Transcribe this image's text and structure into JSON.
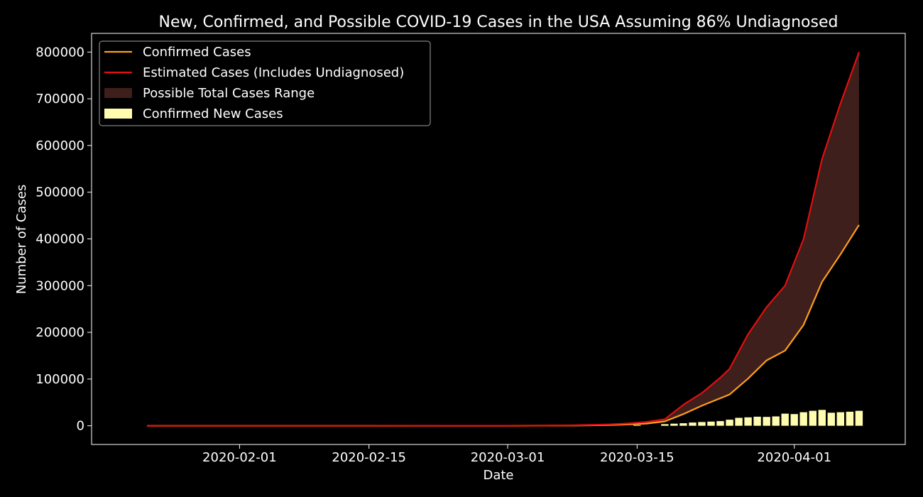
{
  "chart_data": {
    "type": "line",
    "title": "New, Confirmed, and Possible COVID-19 Cases in the USA Assuming 86% Undiagnosed",
    "xlabel": "Date",
    "ylabel": "Number of Cases",
    "ylim": [
      -40000,
      840000
    ],
    "xlim": [
      "2020-01-16",
      "2020-04-13"
    ],
    "x_ticks": [
      "2020-02-01",
      "2020-02-15",
      "2020-03-01",
      "2020-03-15",
      "2020-04-01"
    ],
    "y_ticks": [
      0,
      100000,
      200000,
      300000,
      400000,
      500000,
      600000,
      700000,
      800000
    ],
    "grid": false,
    "legend_position": "top-left",
    "colors": {
      "confirmed": "#ff9f1a",
      "estimated": "#e00f0f",
      "range": "#3e1f1c",
      "new_cases": "#fffcaf",
      "frame": "#ffffff"
    },
    "legend": [
      {
        "label": "Confirmed Cases",
        "kind": "line",
        "color": "#ff9f1a"
      },
      {
        "label": "Estimated Cases (Includes Undiagnosed)",
        "kind": "line",
        "color": "#e00f0f"
      },
      {
        "label": "Possible Total Cases Range",
        "kind": "patch",
        "color": "#3e1f1c"
      },
      {
        "label": "Confirmed New Cases",
        "kind": "patch",
        "color": "#fffcaf"
      }
    ],
    "series": [
      {
        "name": "Confirmed Cases",
        "x": [
          "2020-01-22",
          "2020-02-15",
          "2020-03-01",
          "2020-03-05",
          "2020-03-08",
          "2020-03-10",
          "2020-03-12",
          "2020-03-14",
          "2020-03-16",
          "2020-03-18",
          "2020-03-20",
          "2020-03-22",
          "2020-03-24",
          "2020-03-25",
          "2020-03-27",
          "2020-03-29",
          "2020-03-31",
          "2020-04-02",
          "2020-04-04",
          "2020-04-06",
          "2020-04-08"
        ],
        "values": [
          0,
          0,
          100,
          300,
          500,
          1000,
          1700,
          2900,
          4700,
          9400,
          25000,
          43000,
          59000,
          67000,
          101000,
          140000,
          161000,
          216000,
          308000,
          367000,
          430000
        ]
      },
      {
        "name": "Estimated Cases (Includes Undiagnosed)",
        "x": [
          "2020-01-22",
          "2020-02-15",
          "2020-03-01",
          "2020-03-05",
          "2020-03-08",
          "2020-03-10",
          "2020-03-12",
          "2020-03-14",
          "2020-03-16",
          "2020-03-18",
          "2020-03-20",
          "2020-03-22",
          "2020-03-24",
          "2020-03-25",
          "2020-03-27",
          "2020-03-29",
          "2020-03-31",
          "2020-04-02",
          "2020-04-04",
          "2020-04-06",
          "2020-04-08"
        ],
        "values": [
          0,
          0,
          200,
          500,
          1000,
          2000,
          3000,
          5000,
          8000,
          14000,
          45000,
          70000,
          103000,
          122000,
          196000,
          254000,
          300000,
          400000,
          571000,
          690000,
          800000
        ]
      },
      {
        "name": "Confirmed New Cases",
        "type": "bar",
        "x": [
          "2020-03-15",
          "2020-03-16",
          "2020-03-17",
          "2020-03-18",
          "2020-03-19",
          "2020-03-20",
          "2020-03-21",
          "2020-03-22",
          "2020-03-23",
          "2020-03-24",
          "2020-03-25",
          "2020-03-26",
          "2020-03-27",
          "2020-03-28",
          "2020-03-29",
          "2020-03-30",
          "2020-03-31",
          "2020-04-01",
          "2020-04-02",
          "2020-04-03",
          "2020-04-04",
          "2020-04-05",
          "2020-04-06",
          "2020-04-07",
          "2020-04-08"
        ],
        "values": [
          1500,
          0,
          0,
          3500,
          4500,
          5500,
          7000,
          8000,
          9000,
          10000,
          13000,
          17000,
          18000,
          19500,
          19000,
          20000,
          26000,
          25000,
          29000,
          32000,
          34000,
          28000,
          29000,
          30000,
          32000
        ]
      }
    ]
  }
}
